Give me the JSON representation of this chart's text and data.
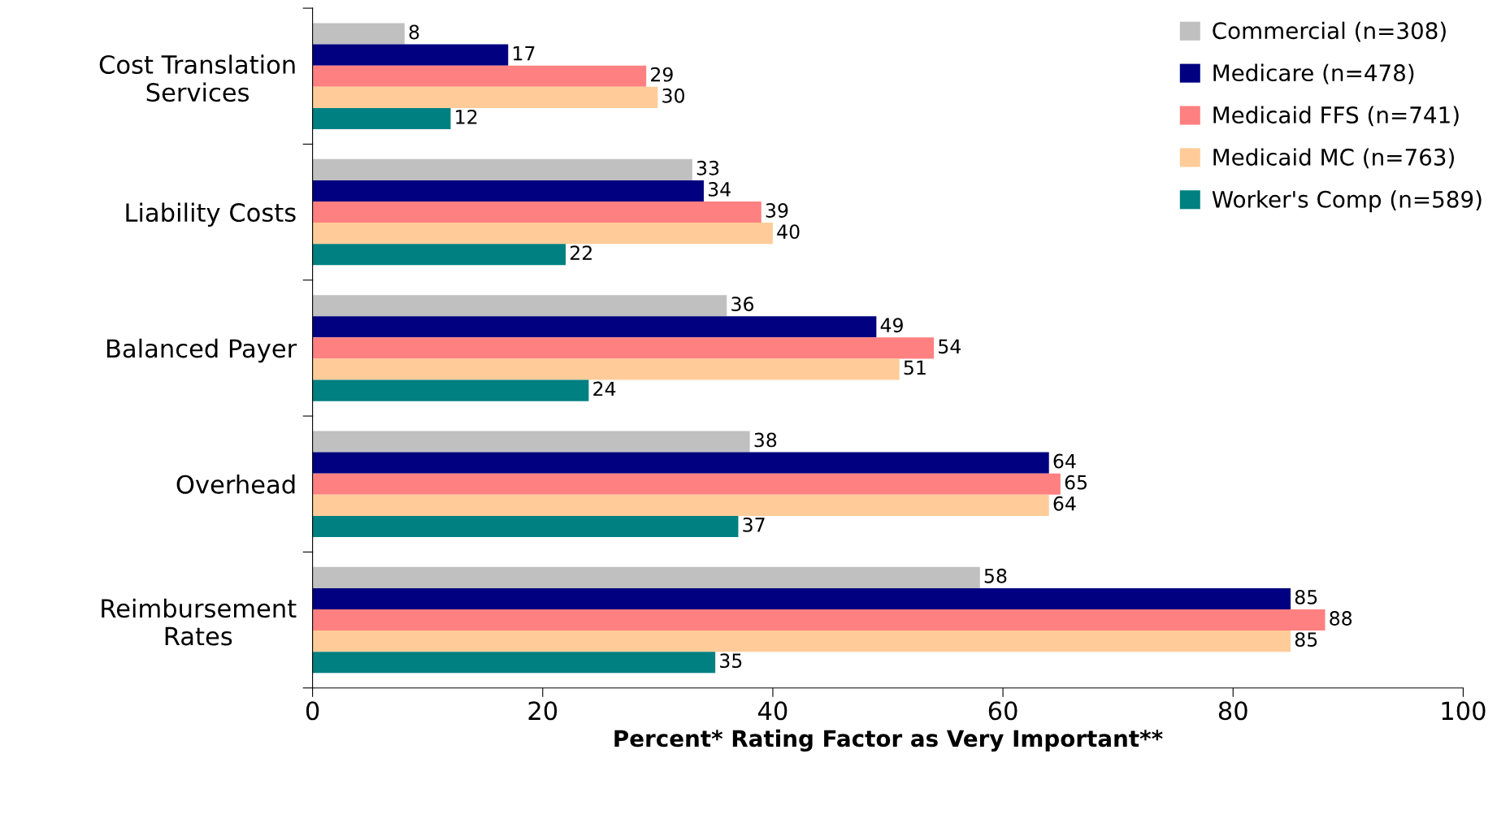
{
  "chart_data": {
    "type": "bar",
    "orientation": "horizontal",
    "xlabel": "Percent* Rating Factor as Very Important**",
    "categories": [
      "Cost Translation\nServices",
      "Liability Costs",
      "Balanced Payer",
      "Overhead",
      "Reimbursement\nRates"
    ],
    "series": [
      {
        "name": "Commercial (n=308)",
        "color": "#c0c0c0",
        "values": [
          8,
          33,
          36,
          38,
          58
        ]
      },
      {
        "name": "Medicare (n=478)",
        "color": "#000080",
        "values": [
          17,
          34,
          49,
          64,
          85
        ]
      },
      {
        "name": "Medicaid FFS (n=741)",
        "color": "#ff8080",
        "values": [
          29,
          39,
          54,
          65,
          88
        ]
      },
      {
        "name": "Medicaid MC (n=763)",
        "color": "#ffcc99",
        "values": [
          30,
          40,
          51,
          64,
          85
        ]
      },
      {
        "name": "Worker's Comp (n=589)",
        "color": "#008080",
        "values": [
          12,
          22,
          24,
          37,
          35
        ]
      }
    ],
    "xlim": [
      0,
      100
    ],
    "xticks": [
      0,
      20,
      40,
      60,
      80,
      100
    ],
    "data_labels": true,
    "grid": false,
    "legend": "top right"
  }
}
